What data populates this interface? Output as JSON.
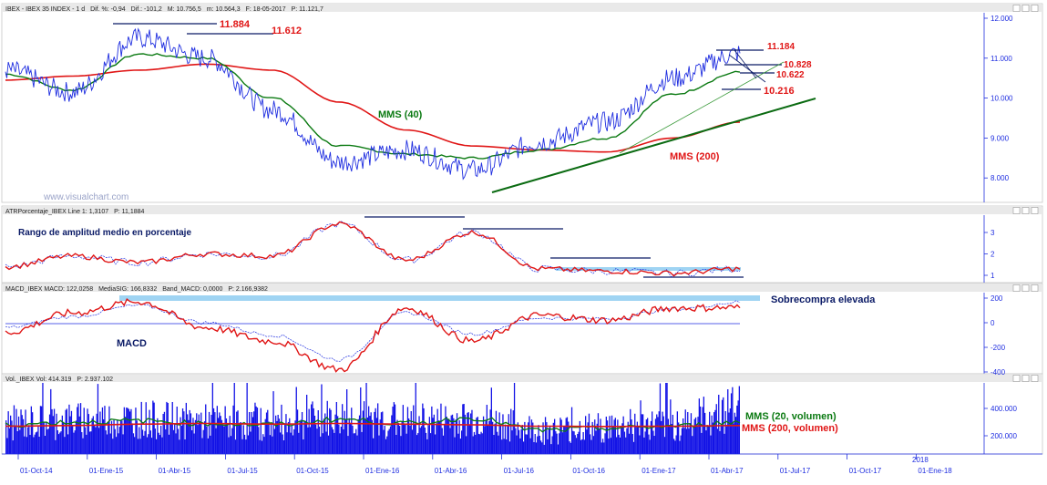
{
  "watermark": "www.visualchart.com",
  "colors": {
    "price": "#1f2ee0",
    "sma40": "#0b7a12",
    "sma200": "#e01616",
    "annotation_red": "#e01616",
    "annotation_green": "#0b7a12",
    "annotation_navy": "#0a1a66",
    "highlight": "#9fd4f3",
    "volume_bar": "#1414e6",
    "axis": "#1f2ee0",
    "header_bg": "#e9e9e9",
    "trend_green": "#0b6b12",
    "trend_light": "#3a9a3a"
  },
  "x_axis": {
    "tick_labels": [
      "01-Oct-14",
      "01-Ene-15",
      "01-Abr-15",
      "01-Jul-15",
      "01-Oct-15",
      "01-Ene-16",
      "01-Abr-16",
      "01-Jul-16",
      "01-Oct-16",
      "01-Ene-17",
      "01-Abr-17",
      "01-Jul-17",
      "01-Oct-17",
      "01-Ene-18"
    ],
    "year_marker": "2018"
  },
  "panels": [
    {
      "id": "price",
      "header": [
        "IBEX - IBEX 35 INDEX - 1 d",
        "Dif. %: -0,94",
        "Dif.: -101,2",
        "M: 10.756,5",
        "m: 10.564,3",
        "F: 18-05-2017",
        "P: 11.121,7"
      ],
      "y_ticks": [
        "12.000",
        "11.000",
        "10.000",
        "9.000",
        "8.000"
      ],
      "labels": {
        "sma40": "MMS (40)",
        "sma200": "MMS (200)",
        "level_11884": "11.884",
        "level_11612": "11.612",
        "level_11184": "11.184",
        "level_10828": "10.828",
        "level_10622": "10.622",
        "level_10216": "10.216"
      }
    },
    {
      "id": "atr",
      "header": [
        "ATRPorcentaje_IBEX Line 1: 1,3107",
        "P: 11,1884"
      ],
      "y_ticks": [
        "3",
        "2",
        "1"
      ],
      "labels": {
        "title": "Rango de amplitud medio en porcentaje"
      }
    },
    {
      "id": "macd",
      "header": [
        "MACD_IBEX MACD: 122,0258",
        "MediaSIG: 166,8332",
        "Band_MACD: 0,0000",
        "P: 2.166,9382"
      ],
      "y_ticks": [
        "200",
        "0",
        "-200",
        "-400"
      ],
      "labels": {
        "name": "MACD",
        "overbought": "Sobrecompra elevada"
      }
    },
    {
      "id": "volume",
      "header": [
        "Vol._IBEX Vol: 414.319",
        "P: 2.937.102"
      ],
      "y_ticks": [
        "400.000",
        "200.000"
      ],
      "labels": {
        "sma20": "MMS (20, volumen)",
        "sma200": "MMS (200, volumen)"
      }
    }
  ],
  "chart_data": [
    {
      "type": "line",
      "title": "IBEX - IBEX 35 INDEX - 1 d",
      "xlabel": "",
      "ylabel": "",
      "ylim": [
        7200,
        12100
      ],
      "x": [
        "01-Oct-14",
        "01-Ene-15",
        "01-Abr-15",
        "01-Jul-15",
        "01-Oct-15",
        "01-Ene-16",
        "01-Abr-16",
        "01-Jul-16",
        "01-Oct-16",
        "01-Ene-17",
        "01-Abr-17",
        "18-May-17"
      ],
      "series": [
        {
          "name": "IBEX",
          "values": [
            10700,
            10150,
            11500,
            11000,
            9700,
            8400,
            8700,
            8200,
            8900,
            9400,
            10500,
            11120
          ]
        },
        {
          "name": "MMS (40)",
          "values": [
            10600,
            10200,
            11100,
            11000,
            10000,
            8800,
            8600,
            8500,
            8700,
            9000,
            10100,
            10650
          ]
        },
        {
          "name": "MMS (200)",
          "values": [
            10450,
            10550,
            10700,
            10850,
            10700,
            9900,
            9200,
            8800,
            8700,
            8650,
            9000,
            9400
          ]
        }
      ],
      "grid": false
    },
    {
      "type": "line",
      "title": "ATRPorcentaje_IBEX",
      "ylim": [
        0.4,
        3.6
      ],
      "x": [
        "01-Oct-14",
        "01-Ene-15",
        "01-Abr-15",
        "01-Jul-15",
        "01-Oct-15",
        "01-Ene-16",
        "01-Abr-16",
        "01-Jul-16",
        "01-Oct-16",
        "01-Ene-17",
        "01-Abr-17",
        "18-May-17"
      ],
      "series": [
        {
          "name": "ATRPorcentaje",
          "values": [
            1.4,
            1.9,
            1.6,
            2.0,
            1.9,
            3.4,
            1.7,
            3.0,
            1.3,
            1.2,
            1.1,
            1.31
          ]
        }
      ]
    },
    {
      "type": "line",
      "title": "MACD_IBEX",
      "ylim": [
        -420,
        230
      ],
      "x": [
        "01-Oct-14",
        "01-Ene-15",
        "01-Abr-15",
        "01-Jul-15",
        "01-Oct-15",
        "01-Ene-16",
        "01-Abr-16",
        "01-Jul-16",
        "01-Oct-16",
        "01-Ene-17",
        "01-Abr-17",
        "18-May-17"
      ],
      "series": [
        {
          "name": "MACD",
          "values": [
            -80,
            80,
            170,
            -40,
            -150,
            -380,
            120,
            -150,
            60,
            20,
            120,
            122
          ]
        },
        {
          "name": "MediaSIG",
          "values": [
            -40,
            50,
            140,
            0,
            -100,
            -300,
            80,
            -90,
            40,
            30,
            110,
            167
          ]
        }
      ]
    },
    {
      "type": "bar",
      "title": "Vol._IBEX",
      "ylim": [
        0,
        600000
      ],
      "x": [
        "01-Oct-14",
        "01-Ene-15",
        "01-Abr-15",
        "01-Jul-15",
        "01-Oct-15",
        "01-Ene-16",
        "01-Abr-16",
        "01-Jul-16",
        "01-Oct-16",
        "01-Ene-17",
        "01-Abr-17",
        "18-May-17"
      ],
      "series": [
        {
          "name": "Vol",
          "values": [
            290000,
            310000,
            320000,
            300000,
            290000,
            330000,
            300000,
            320000,
            240000,
            260000,
            280000,
            414319
          ]
        },
        {
          "name": "MMS (20, volumen)",
          "values": [
            280000,
            300000,
            310000,
            290000,
            280000,
            320000,
            290000,
            330000,
            240000,
            255000,
            270000,
            300000
          ]
        },
        {
          "name": "MMS (200, volumen)",
          "values": [
            270000,
            275000,
            285000,
            290000,
            285000,
            290000,
            285000,
            280000,
            270000,
            268000,
            270000,
            275000
          ]
        }
      ]
    }
  ]
}
